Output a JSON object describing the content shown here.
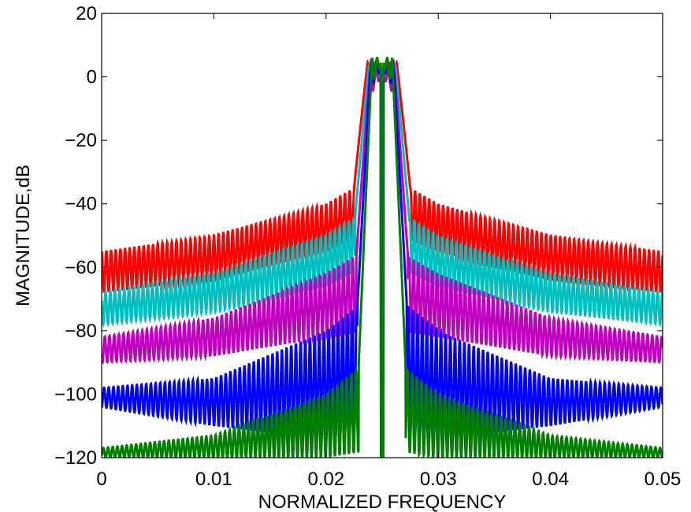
{
  "chart_data": {
    "type": "line",
    "title": "",
    "xlabel": "NORMALIZED FREQUENCY",
    "ylabel": "MAGNITUDE,dB",
    "xlim": [
      0,
      0.05
    ],
    "ylim": [
      -120,
      20
    ],
    "xticks": [
      0,
      0.01,
      0.02,
      0.03,
      0.04,
      0.05
    ],
    "xtick_labels": [
      "0",
      "0.01",
      "0.02",
      "0.03",
      "0.04",
      "0.05"
    ],
    "yticks": [
      20,
      0,
      -20,
      -40,
      -60,
      -80,
      -100,
      -120
    ],
    "ytick_labels": [
      "20",
      "0",
      "−20",
      "−40",
      "−60",
      "−80",
      "−100",
      "−120"
    ],
    "grid": false,
    "legend": "none",
    "center_frequency": 0.025,
    "series": [
      {
        "color": "#ff0000",
        "passband_peak_db": 4.5,
        "passband_edges": [
          0.0237,
          0.0263
        ],
        "sidelobe_envelope_upper": {
          "x": [
            0,
            0.01,
            0.02,
            0.0235
          ],
          "y": [
            -55,
            -50,
            -40,
            -33
          ]
        },
        "sidelobe_envelope_lower": {
          "x": [
            0,
            0.01,
            0.02,
            0.0235
          ],
          "y": [
            -68,
            -64,
            -55,
            -50
          ]
        }
      },
      {
        "color": "#00bfbf",
        "passband_peak_db": 3,
        "passband_edges": [
          0.0238,
          0.0262
        ],
        "sidelobe_envelope_upper": {
          "x": [
            0,
            0.01,
            0.02,
            0.0235
          ],
          "y": [
            -68,
            -62,
            -50,
            -42
          ]
        },
        "sidelobe_envelope_lower": {
          "x": [
            0,
            0.01,
            0.02,
            0.0235
          ],
          "y": [
            -78,
            -74,
            -66,
            -60
          ]
        }
      },
      {
        "color": "#bf00bf",
        "passband_peak_db": 2,
        "passband_edges": [
          0.0239,
          0.0261
        ],
        "sidelobe_envelope_upper": {
          "x": [
            0,
            0.01,
            0.02,
            0.0235
          ],
          "y": [
            -82,
            -76,
            -62,
            -55
          ]
        },
        "sidelobe_envelope_lower": {
          "x": [
            0,
            0.01,
            0.02,
            0.0235
          ],
          "y": [
            -90,
            -88,
            -82,
            -80
          ]
        }
      },
      {
        "color": "#0000ff",
        "passband_peak_db": 4.5,
        "passband_edges": [
          0.024,
          0.026
        ],
        "sidelobe_envelope_upper": {
          "x": [
            0,
            0.01,
            0.02,
            0.0235
          ],
          "y": [
            -98,
            -95,
            -80,
            -70
          ]
        },
        "sidelobe_envelope_lower": {
          "x": [
            0,
            0.01,
            0.02,
            0.0235
          ],
          "y": [
            -104,
            -110,
            -114,
            -110
          ]
        }
      },
      {
        "color": "#008000",
        "passband_peak_db": 6,
        "passband_edges": [
          0.0241,
          0.0259
        ],
        "sidelobe_envelope_upper": {
          "x": [
            0,
            0.01,
            0.02,
            0.0235
          ],
          "y": [
            -117,
            -113,
            -100,
            -90
          ]
        },
        "sidelobe_envelope_lower": {
          "x": [
            0,
            0.01,
            0.02,
            0.0235
          ],
          "y": [
            -120,
            -120,
            -120,
            -118
          ]
        }
      }
    ]
  }
}
